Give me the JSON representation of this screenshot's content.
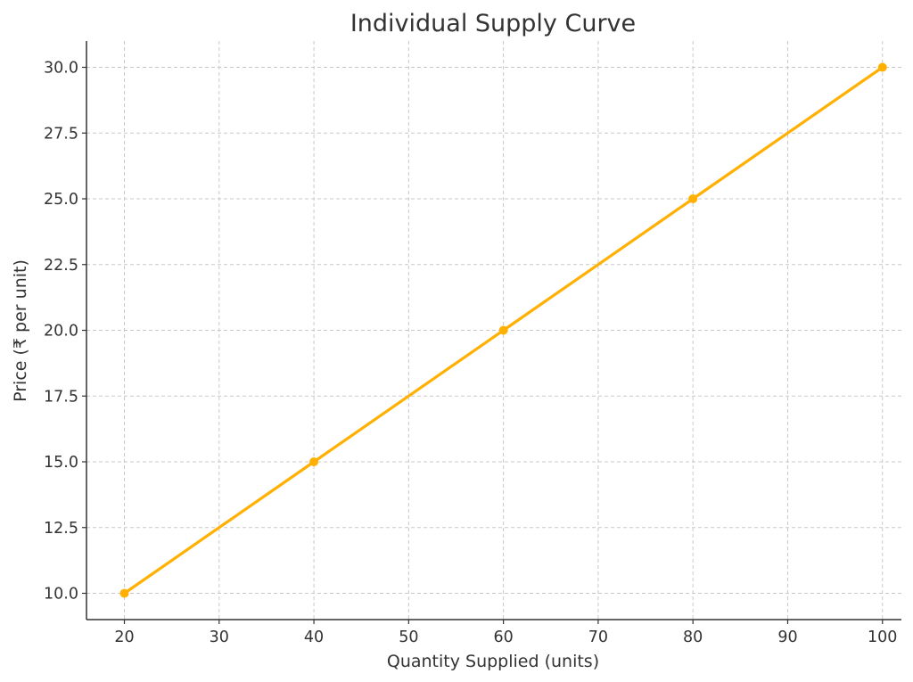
{
  "chart_data": {
    "type": "line",
    "title": "Individual Supply Curve",
    "xlabel": "Quantity Supplied (units)",
    "ylabel": "Price (₹ per unit)",
    "x": [
      20,
      40,
      60,
      80,
      100
    ],
    "series": [
      {
        "values": [
          10,
          15,
          20,
          25,
          30
        ],
        "color": "#FFB000"
      }
    ],
    "xlim": [
      16,
      102
    ],
    "ylim": [
      9,
      31
    ],
    "xticks": [
      20,
      30,
      40,
      50,
      60,
      70,
      80,
      90,
      100
    ],
    "yticks": [
      10.0,
      12.5,
      15.0,
      17.5,
      20.0,
      22.5,
      25.0,
      27.5,
      30.0
    ],
    "xtick_labels": [
      "20",
      "30",
      "40",
      "50",
      "60",
      "70",
      "80",
      "90",
      "100"
    ],
    "ytick_labels": [
      "10.0",
      "12.5",
      "15.0",
      "17.5",
      "20.0",
      "22.5",
      "25.0",
      "27.5",
      "30.0"
    ],
    "grid": true,
    "marker": "circle"
  }
}
